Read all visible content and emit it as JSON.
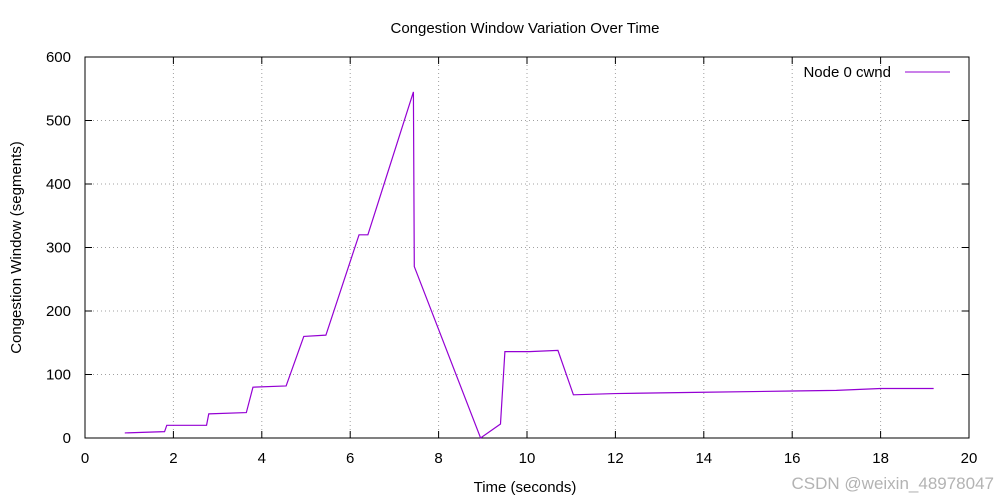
{
  "chart_data": {
    "type": "line",
    "title": "Congestion Window Variation Over Time",
    "xlabel": "Time (seconds)",
    "ylabel": "Congestion Window (segments)",
    "xlim": [
      0,
      20
    ],
    "ylim": [
      0,
      600
    ],
    "xticks": [
      0,
      2,
      4,
      6,
      8,
      10,
      12,
      14,
      16,
      18,
      20
    ],
    "yticks": [
      0,
      100,
      200,
      300,
      400,
      500,
      600
    ],
    "grid": true,
    "legend_position": "top-right",
    "series": [
      {
        "name": "Node 0 cwnd",
        "color": "#9400d3",
        "x": [
          0.9,
          1.8,
          1.85,
          2.75,
          2.8,
          3.65,
          3.8,
          4.55,
          4.95,
          5.45,
          6.2,
          6.4,
          7.43,
          7.45,
          8.95,
          9.4,
          9.5,
          10.05,
          10.7,
          11.05,
          12.0,
          14.0,
          16.0,
          17.0,
          18.0,
          19.2
        ],
        "y": [
          8,
          10,
          20,
          20,
          38,
          40,
          80,
          82,
          160,
          162,
          320,
          320,
          545,
          270,
          0,
          22,
          136,
          136,
          138,
          68,
          70,
          72,
          74,
          75,
          78,
          78
        ]
      }
    ]
  },
  "watermark": "CSDN @weixin_48978047"
}
